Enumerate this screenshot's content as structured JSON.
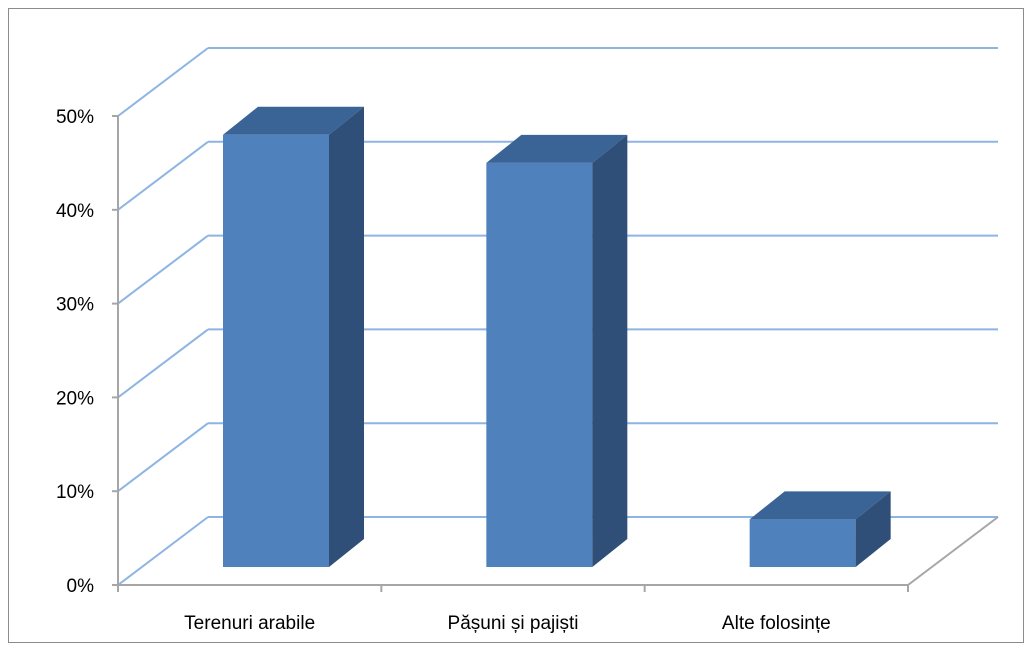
{
  "chart_data": {
    "type": "bar",
    "categories": [
      "Terenuri arabile",
      "Pășuni și pajiști",
      "Alte folosințe"
    ],
    "values": [
      48,
      45,
      7
    ],
    "ylim": [
      0,
      50
    ],
    "yticks": [
      "0%",
      "10%",
      "20%",
      "30%",
      "40%",
      "50%"
    ],
    "title": "",
    "xlabel": "",
    "ylabel": "",
    "legend": "none",
    "grid": true,
    "three_d": true,
    "colors": {
      "bar_front": "#4f81bd",
      "bar_side": "#2f4f78",
      "bar_top": "#3a6496",
      "gridline": "#8eb4e3",
      "axis": "#a6a6a6",
      "border": "#8c8c8c"
    }
  }
}
